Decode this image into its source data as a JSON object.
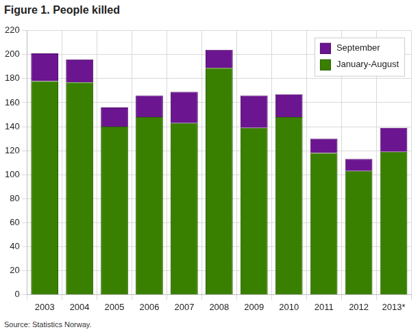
{
  "chart_data": {
    "type": "bar",
    "title": "Figure 1. People killed",
    "source": "Source: Statistics Norway.",
    "categories": [
      "2003",
      "2004",
      "2005",
      "2006",
      "2007",
      "2008",
      "2009",
      "2010",
      "2011",
      "2012",
      "2013*"
    ],
    "series": [
      {
        "name": "January-August",
        "color": "#3a8000",
        "values": [
          178,
          177,
          140,
          148,
          143,
          189,
          139,
          148,
          118,
          103,
          119
        ]
      },
      {
        "name": "September",
        "color": "#6b1590",
        "values": [
          23,
          19,
          16,
          18,
          26,
          15,
          27,
          19,
          12,
          10,
          20
        ]
      }
    ],
    "stacked": true,
    "grid": true,
    "legend": "upper right",
    "ylim": [
      0,
      220
    ],
    "yticks": [
      0,
      20,
      40,
      60,
      80,
      100,
      120,
      140,
      160,
      180,
      200,
      220
    ]
  }
}
